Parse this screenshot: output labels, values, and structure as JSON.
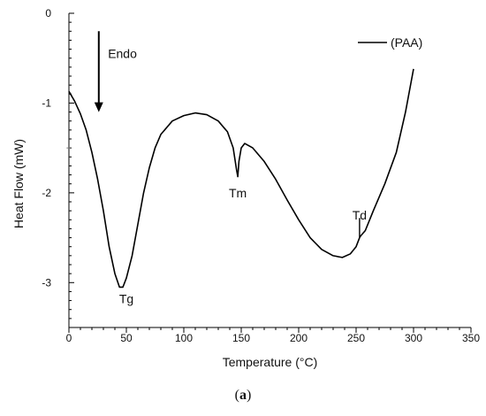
{
  "caption": {
    "open": "(",
    "letter": "a",
    "close": ")"
  },
  "chart_data": {
    "type": "line",
    "title": "",
    "xlabel": "Temperature (°C)",
    "ylabel": "Heat Flow (mW)",
    "xlim": [
      0,
      350
    ],
    "ylim": [
      -3.5,
      0
    ],
    "x_ticks": [
      0,
      50,
      100,
      150,
      200,
      250,
      300,
      350
    ],
    "y_ticks": [
      0,
      -1,
      -2,
      -3
    ],
    "grid": false,
    "legend": {
      "placement": "top-right",
      "entries": [
        "(PAA)"
      ]
    },
    "series": [
      {
        "name": "(PAA)",
        "color": "#000000",
        "points": [
          [
            0,
            -0.87
          ],
          [
            5,
            -0.98
          ],
          [
            10,
            -1.12
          ],
          [
            15,
            -1.3
          ],
          [
            20,
            -1.55
          ],
          [
            25,
            -1.85
          ],
          [
            30,
            -2.2
          ],
          [
            35,
            -2.6
          ],
          [
            40,
            -2.9
          ],
          [
            44,
            -3.05
          ],
          [
            47,
            -3.05
          ],
          [
            50,
            -2.95
          ],
          [
            55,
            -2.7
          ],
          [
            60,
            -2.35
          ],
          [
            65,
            -2.0
          ],
          [
            70,
            -1.72
          ],
          [
            75,
            -1.5
          ],
          [
            80,
            -1.35
          ],
          [
            90,
            -1.2
          ],
          [
            100,
            -1.14
          ],
          [
            110,
            -1.11
          ],
          [
            120,
            -1.13
          ],
          [
            130,
            -1.2
          ],
          [
            138,
            -1.32
          ],
          [
            143,
            -1.5
          ],
          [
            146,
            -1.75
          ],
          [
            147,
            -1.82
          ],
          [
            148,
            -1.65
          ],
          [
            150,
            -1.5
          ],
          [
            153,
            -1.45
          ],
          [
            160,
            -1.5
          ],
          [
            170,
            -1.65
          ],
          [
            180,
            -1.85
          ],
          [
            190,
            -2.08
          ],
          [
            200,
            -2.3
          ],
          [
            210,
            -2.5
          ],
          [
            220,
            -2.63
          ],
          [
            230,
            -2.7
          ],
          [
            238,
            -2.72
          ],
          [
            245,
            -2.68
          ],
          [
            250,
            -2.6
          ],
          [
            253,
            -2.5
          ],
          [
            254,
            -2.48
          ],
          [
            258,
            -2.42
          ],
          [
            265,
            -2.2
          ],
          [
            275,
            -1.9
          ],
          [
            285,
            -1.55
          ],
          [
            293,
            -1.1
          ],
          [
            300,
            -0.62
          ]
        ]
      }
    ],
    "annotations": [
      {
        "text": "Tg",
        "x": 50,
        "y": -3.18
      },
      {
        "text": "Tm",
        "x": 147,
        "y": -2.0
      },
      {
        "text": "Td",
        "x": 253,
        "y": -2.25
      },
      {
        "text": "Endo",
        "x": 34,
        "y": -0.45
      }
    ],
    "endo_arrow": {
      "x": 26,
      "y_start": -0.2,
      "y_end": -1.1
    },
    "td_marker": {
      "x": 253,
      "y_top": -2.28,
      "y_bottom": -2.5
    },
    "dash_mark": {
      "x": -0.5,
      "y": -1.5
    }
  }
}
